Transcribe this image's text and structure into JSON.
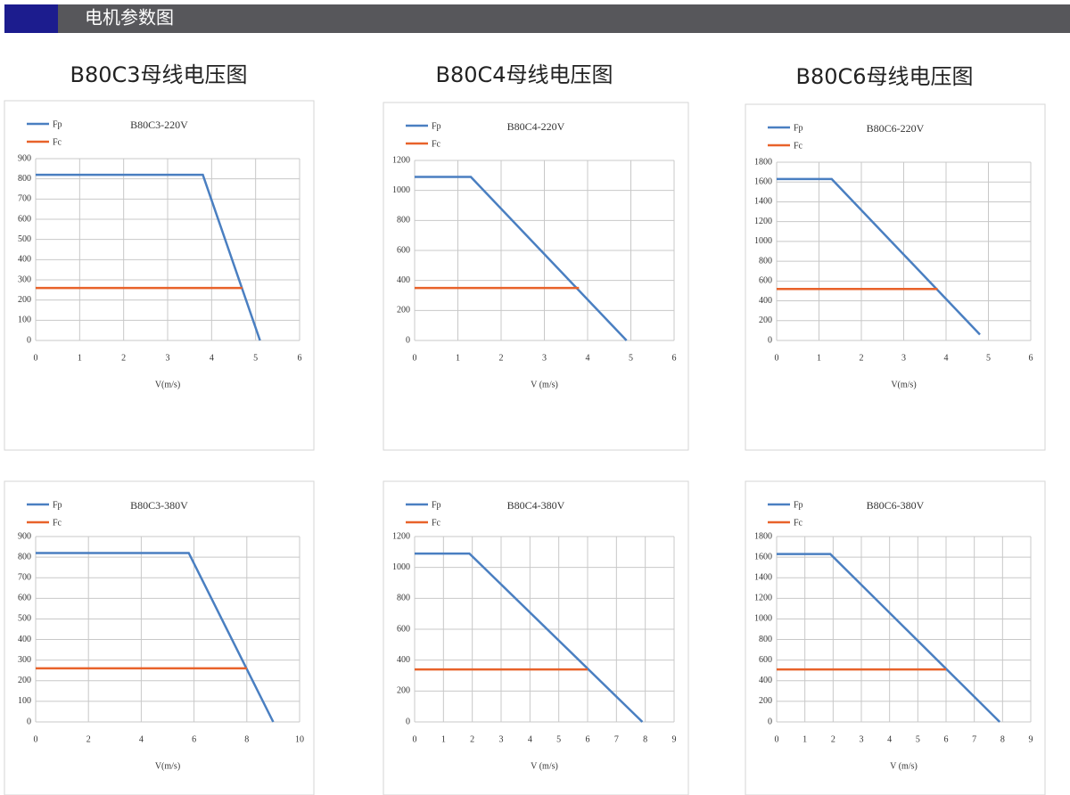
{
  "header": {
    "title": "电机参数图"
  },
  "column_titles": [
    "B80C3母线电压图",
    "B80C4母线电压图",
    "B80C6母线电压图"
  ],
  "chart_data": [
    {
      "type": "line",
      "title": "B80C3-220V",
      "xlabel": "V(m/s)",
      "xlim": [
        0,
        6
      ],
      "xticks": [
        0,
        1,
        2,
        3,
        4,
        5,
        6
      ],
      "ylim": [
        0,
        900
      ],
      "yticks": [
        0,
        100,
        200,
        300,
        400,
        500,
        600,
        700,
        800,
        900
      ],
      "grid": true,
      "series": [
        {
          "name": "Fp",
          "color": "#4a7fc1",
          "x": [
            0,
            3.8,
            5.1
          ],
          "values": [
            820,
            820,
            0
          ]
        },
        {
          "name": "Fc",
          "color": "#e8622a",
          "x": [
            0,
            4.7
          ],
          "values": [
            260,
            260
          ]
        }
      ]
    },
    {
      "type": "line",
      "title": "B80C4-220V",
      "xlabel": "V (m/s)",
      "xlim": [
        0,
        6
      ],
      "xticks": [
        0,
        1,
        2,
        3,
        4,
        5,
        6
      ],
      "ylim": [
        0,
        1200
      ],
      "yticks": [
        0,
        200,
        400,
        600,
        800,
        1000,
        1200
      ],
      "grid": true,
      "series": [
        {
          "name": "Fp",
          "color": "#4a7fc1",
          "x": [
            0,
            1.3,
            4.9
          ],
          "values": [
            1090,
            1090,
            0
          ]
        },
        {
          "name": "Fc",
          "color": "#e8622a",
          "x": [
            0,
            3.8
          ],
          "values": [
            350,
            350
          ]
        }
      ]
    },
    {
      "type": "line",
      "title": "B80C6-220V",
      "xlabel": "V(m/s)",
      "xlim": [
        0,
        6
      ],
      "xticks": [
        0,
        1,
        2,
        3,
        4,
        5,
        6
      ],
      "ylim": [
        0,
        1800
      ],
      "yticks": [
        0,
        200,
        400,
        600,
        800,
        1000,
        1200,
        1400,
        1600,
        1800
      ],
      "grid": true,
      "series": [
        {
          "name": "Fp",
          "color": "#4a7fc1",
          "x": [
            0,
            1.3,
            4.8
          ],
          "values": [
            1630,
            1630,
            60
          ]
        },
        {
          "name": "Fc",
          "color": "#e8622a",
          "x": [
            0,
            3.8
          ],
          "values": [
            520,
            520
          ]
        }
      ]
    },
    {
      "type": "line",
      "title": "B80C3-380V",
      "xlabel": "V(m/s)",
      "xlim": [
        0,
        10
      ],
      "xticks": [
        0,
        2,
        4,
        6,
        8,
        10
      ],
      "ylim": [
        0,
        900
      ],
      "yticks": [
        0,
        100,
        200,
        300,
        400,
        500,
        600,
        700,
        800,
        900
      ],
      "grid": true,
      "series": [
        {
          "name": "Fp",
          "color": "#4a7fc1",
          "x": [
            0,
            5.8,
            9
          ],
          "values": [
            820,
            820,
            0
          ]
        },
        {
          "name": "Fc",
          "color": "#e8622a",
          "x": [
            0,
            8
          ],
          "values": [
            260,
            260
          ]
        }
      ]
    },
    {
      "type": "line",
      "title": "B80C4-380V",
      "xlabel": "V (m/s)",
      "xlim": [
        0,
        9
      ],
      "xticks": [
        0,
        1,
        2,
        3,
        4,
        5,
        6,
        7,
        8,
        9
      ],
      "ylim": [
        0,
        1200
      ],
      "yticks": [
        0,
        200,
        400,
        600,
        800,
        1000,
        1200
      ],
      "grid": true,
      "series": [
        {
          "name": "Fp",
          "color": "#4a7fc1",
          "x": [
            0,
            1.9,
            7.9
          ],
          "values": [
            1090,
            1090,
            0
          ]
        },
        {
          "name": "Fc",
          "color": "#e8622a",
          "x": [
            0,
            6
          ],
          "values": [
            340,
            340
          ]
        }
      ]
    },
    {
      "type": "line",
      "title": "B80C6-380V",
      "xlabel": "V (m/s)",
      "xlim": [
        0,
        9
      ],
      "xticks": [
        0,
        1,
        2,
        3,
        4,
        5,
        6,
        7,
        8,
        9
      ],
      "ylim": [
        0,
        1800
      ],
      "yticks": [
        0,
        200,
        400,
        600,
        800,
        1000,
        1200,
        1400,
        1600,
        1800
      ],
      "grid": true,
      "series": [
        {
          "name": "Fp",
          "color": "#4a7fc1",
          "x": [
            0,
            1.9,
            7.9
          ],
          "values": [
            1630,
            1630,
            0
          ]
        },
        {
          "name": "Fc",
          "color": "#e8622a",
          "x": [
            0,
            6
          ],
          "values": [
            510,
            510
          ]
        }
      ]
    }
  ]
}
